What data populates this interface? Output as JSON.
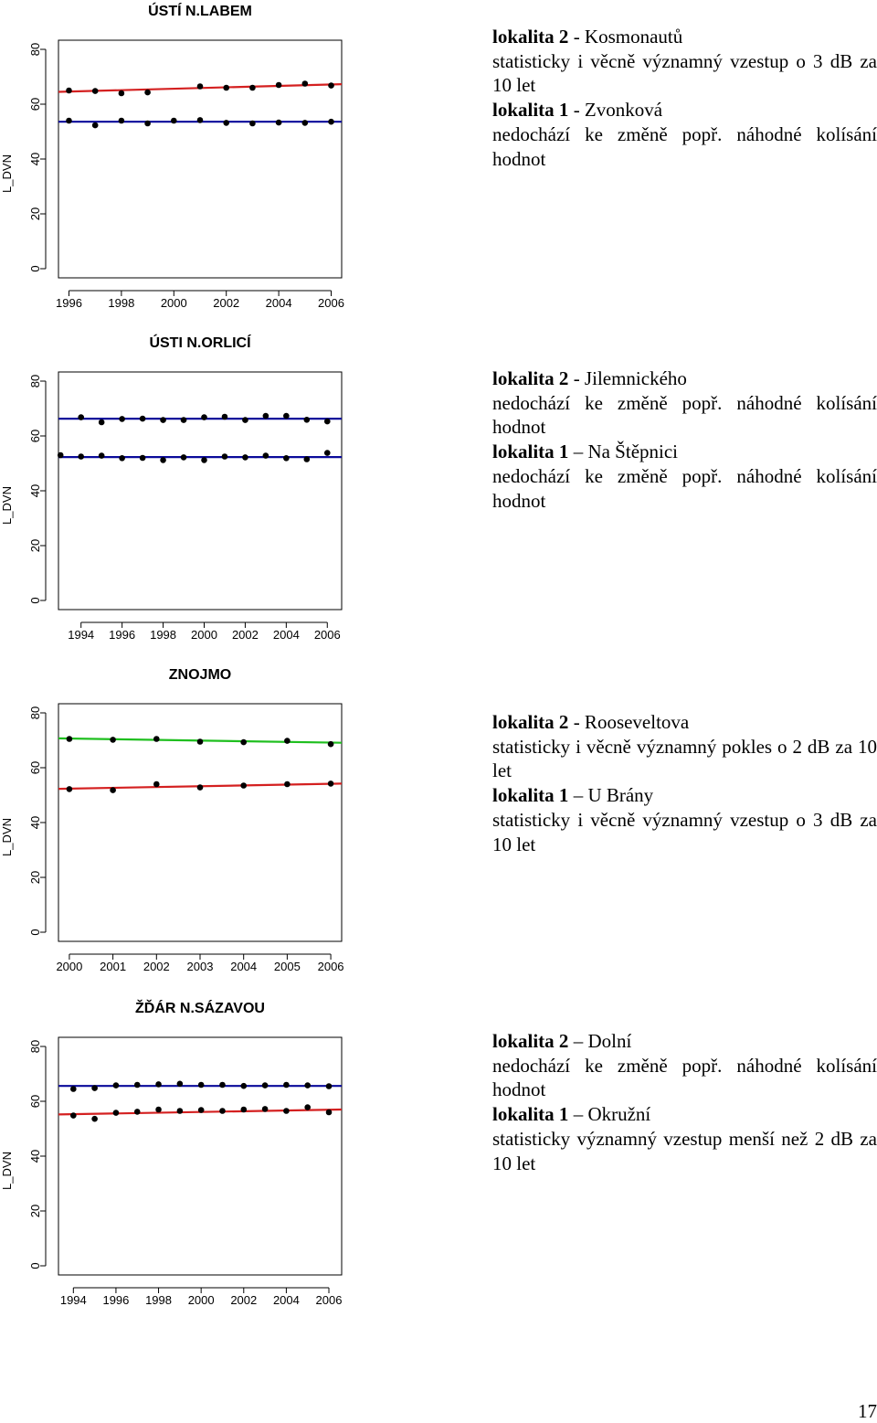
{
  "chart_data": [
    {
      "type": "scatter",
      "title": "ÚSTÍ N.LABEM",
      "ylabel": "L_DVN",
      "xlabel": "",
      "xlim": [
        1995.6,
        2006.4
      ],
      "ylim": [
        0,
        80
      ],
      "x_ticks": [
        1996,
        1998,
        2000,
        2002,
        2004,
        2006
      ],
      "y_ticks": [
        0,
        20,
        40,
        60,
        80
      ],
      "series": [
        {
          "color": "#d42020",
          "x": [
            1996,
            1997,
            1998,
            1999,
            2001,
            2002,
            2003,
            2004,
            2005,
            2006
          ],
          "values": [
            65,
            64.8,
            64,
            64.3,
            66.5,
            66,
            66,
            67,
            67.5,
            66.8
          ],
          "trend": [
            64.5,
            67.3
          ]
        },
        {
          "color": "#0a0a9a",
          "x": [
            1996,
            1997,
            1998,
            1999,
            2000,
            2001,
            2002,
            2003,
            2004,
            2005,
            2006
          ],
          "values": [
            54,
            52.3,
            54,
            53,
            54,
            54.2,
            53.2,
            53,
            53.3,
            53.2,
            53.6
          ],
          "trend": [
            53.6,
            53.6
          ]
        }
      ]
    },
    {
      "type": "scatter",
      "title": "ÚSTI N.ORLICÍ",
      "ylabel": "L_DVN",
      "xlabel": "",
      "xlim": [
        1992.9,
        2006.7
      ],
      "ylim": [
        0,
        80
      ],
      "x_ticks": [
        1994,
        1996,
        1998,
        2000,
        2002,
        2004,
        2006
      ],
      "y_ticks": [
        0,
        20,
        40,
        60,
        80
      ],
      "series": [
        {
          "color": "#0a0a9a",
          "x": [
            1994,
            1995,
            1996,
            1997,
            1998,
            1999,
            2000,
            2001,
            2002,
            2003,
            2004,
            2005,
            2006
          ],
          "values": [
            66.8,
            65,
            66.2,
            66.3,
            65.8,
            65.8,
            66.8,
            67,
            65.8,
            67.3,
            67.3,
            65.9,
            65.3
          ],
          "trend": [
            66.3,
            66.3
          ]
        },
        {
          "color": "#0a0a9a",
          "x": [
            1993,
            1994,
            1995,
            1996,
            1997,
            1998,
            1999,
            2000,
            2001,
            2002,
            2003,
            2004,
            2005,
            2006
          ],
          "values": [
            53,
            52.5,
            52.8,
            51.9,
            52,
            51.2,
            52.2,
            51.2,
            52.5,
            52.2,
            52.8,
            51.9,
            51.5,
            53.8
          ],
          "trend": [
            52.3,
            52.3
          ]
        }
      ]
    },
    {
      "type": "scatter",
      "title": "ZNOJMO",
      "ylabel": "L_DVN",
      "xlabel": "",
      "xlim": [
        1999.75,
        2006.25
      ],
      "ylim": [
        0,
        80
      ],
      "x_ticks": [
        2000,
        2001,
        2002,
        2003,
        2004,
        2005,
        2006
      ],
      "y_ticks": [
        0,
        20,
        40,
        60,
        80
      ],
      "series": [
        {
          "color": "#1fbf1f",
          "x": [
            2000,
            2001,
            2002,
            2003,
            2004,
            2005,
            2006
          ],
          "values": [
            70.5,
            70.2,
            70.5,
            69.5,
            69.3,
            69.8,
            68.6
          ],
          "trend": [
            70.7,
            69.1
          ]
        },
        {
          "color": "#d42020",
          "x": [
            2000,
            2001,
            2002,
            2003,
            2004,
            2005,
            2006
          ],
          "values": [
            52.2,
            51.8,
            54,
            52.8,
            53.5,
            54,
            54.2
          ],
          "trend": [
            52.3,
            54.2
          ]
        }
      ]
    },
    {
      "type": "scatter",
      "title": "ŽĎÁR N.SÁZAVOU",
      "ylabel": "L_DVN",
      "xlabel": "",
      "xlim": [
        1993.3,
        2006.6
      ],
      "ylim": [
        0,
        80
      ],
      "x_ticks": [
        1994,
        1996,
        1998,
        2000,
        2002,
        2004,
        2006
      ],
      "y_ticks": [
        0,
        20,
        40,
        60,
        80
      ],
      "series": [
        {
          "color": "#0a0a9a",
          "x": [
            1994,
            1995,
            1996,
            1997,
            1998,
            1999,
            2000,
            2001,
            2002,
            2003,
            2004,
            2005,
            2006
          ],
          "values": [
            64.5,
            64.8,
            65.8,
            66,
            66.2,
            66.4,
            66,
            66,
            65.6,
            65.8,
            66,
            65.8,
            65.5
          ],
          "trend": [
            65.6,
            65.6
          ]
        },
        {
          "color": "#d42020",
          "x": [
            1994,
            1995,
            1996,
            1997,
            1998,
            1999,
            2000,
            2001,
            2002,
            2003,
            2004,
            2005,
            2006
          ],
          "values": [
            54.8,
            53.6,
            55.8,
            56.2,
            57,
            56.5,
            56.8,
            56.5,
            57,
            57.2,
            56.5,
            57.8,
            56
          ],
          "trend": [
            55.2,
            57
          ]
        }
      ]
    }
  ],
  "descriptions": [
    [
      {
        "bold": "lokalita 2",
        "text": " - Kosmonautů"
      },
      {
        "text": "statisticky i věcně významný vzestup o 3 dB za 10 let"
      },
      {
        "bold": "lokalita 1",
        "text": " - Zvonková"
      },
      {
        "text": "nedochází ke změně popř. náhodné kolísání hodnot"
      }
    ],
    [
      {
        "bold": "lokalita 2",
        "text": " - Jilemnického"
      },
      {
        "text": "nedochází ke změně popř. náhodné kolísání hodnot"
      },
      {
        "bold": "lokalita 1",
        "text": " – Na Štěpnici"
      },
      {
        "text": "nedochází ke změně popř. náhodné kolísání hodnot"
      }
    ],
    [
      {
        "bold": "lokalita 2",
        "text": " - Rooseveltova"
      },
      {
        "text": "statisticky i věcně významný pokles o 2 dB za 10 let"
      },
      {
        "bold": "lokalita 1",
        "text": " – U Brány"
      },
      {
        "text": "statisticky i věcně významný vzestup o 3 dB za 10 let"
      }
    ],
    [
      {
        "bold": "lokalita 2",
        "text": " – Dolní"
      },
      {
        "text": "nedochází ke změně popř. náhodné kolísání hodnot"
      },
      {
        "bold": "lokalita 1",
        "text": " – Okružní"
      },
      {
        "text": "statisticky významný vzestup menší než 2 dB za 10 let"
      }
    ]
  ],
  "page_number": "17"
}
